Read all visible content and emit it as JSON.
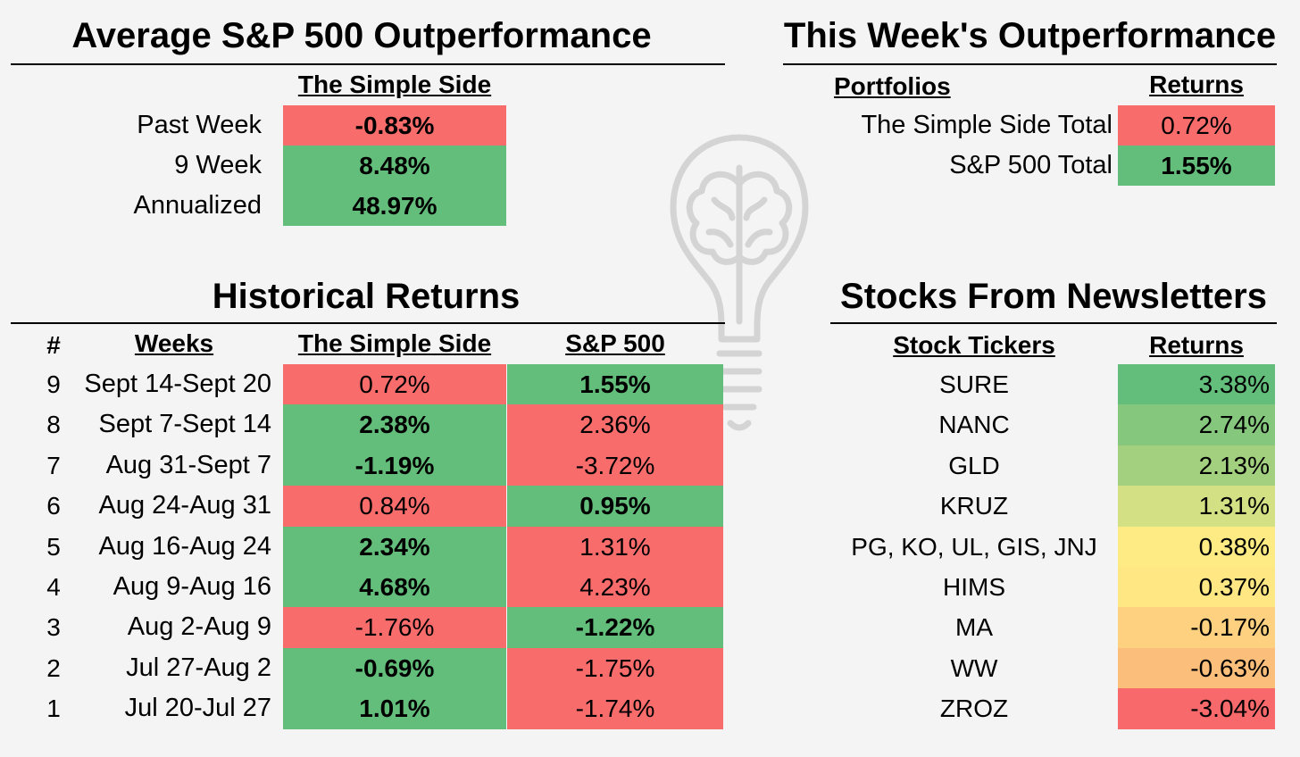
{
  "colors": {
    "red": "#f86c6b",
    "green": "#63be7b",
    "returns_scale": [
      "#63be7b",
      "#85c87d",
      "#a2d07f",
      "#d3e083",
      "#ffeb84",
      "#ffe884",
      "#fdd17f",
      "#fcbf7b",
      "#f8696b"
    ]
  },
  "avg": {
    "title": "Average S&P 500 Outperformance",
    "col_header": "The Simple Side",
    "rows": [
      {
        "label": "Past Week",
        "value": "-0.83%",
        "color": "red",
        "bold": true
      },
      {
        "label": "9 Week",
        "value": "8.48%",
        "color": "green",
        "bold": true
      },
      {
        "label": "Annualized",
        "value": "48.97%",
        "color": "green",
        "bold": true
      }
    ]
  },
  "week": {
    "title": "This Week's Outperformance",
    "headers": {
      "portfolios": "Portfolios",
      "returns": "Returns"
    },
    "rows": [
      {
        "label": "The Simple Side Total",
        "value": "0.72%",
        "color": "red",
        "bold": false
      },
      {
        "label": "S&P 500 Total",
        "value": "1.55%",
        "color": "green",
        "bold": true
      }
    ]
  },
  "hist": {
    "title": "Historical Returns",
    "headers": {
      "num": "#",
      "weeks": "Weeks",
      "simple": "The Simple Side",
      "sp": "S&P 500"
    },
    "rows": [
      {
        "num": "9",
        "week": "Sept 14-Sept 20",
        "simple": "0.72%",
        "simple_color": "red",
        "simple_bold": false,
        "sp": "1.55%",
        "sp_color": "green",
        "sp_bold": true
      },
      {
        "num": "8",
        "week": "Sept 7-Sept 14",
        "simple": "2.38%",
        "simple_color": "green",
        "simple_bold": true,
        "sp": "2.36%",
        "sp_color": "red",
        "sp_bold": false
      },
      {
        "num": "7",
        "week": "Aug 31-Sept 7",
        "simple": "-1.19%",
        "simple_color": "green",
        "simple_bold": true,
        "sp": "-3.72%",
        "sp_color": "red",
        "sp_bold": false
      },
      {
        "num": "6",
        "week": "Aug 24-Aug 31",
        "simple": "0.84%",
        "simple_color": "red",
        "simple_bold": false,
        "sp": "0.95%",
        "sp_color": "green",
        "sp_bold": true
      },
      {
        "num": "5",
        "week": "Aug 16-Aug 24",
        "simple": "2.34%",
        "simple_color": "green",
        "simple_bold": true,
        "sp": "1.31%",
        "sp_color": "red",
        "sp_bold": false
      },
      {
        "num": "4",
        "week": "Aug 9-Aug 16",
        "simple": "4.68%",
        "simple_color": "green",
        "simple_bold": true,
        "sp": "4.23%",
        "sp_color": "red",
        "sp_bold": false
      },
      {
        "num": "3",
        "week": "Aug 2-Aug 9",
        "simple": "-1.76%",
        "simple_color": "red",
        "simple_bold": false,
        "sp": "-1.22%",
        "sp_color": "green",
        "sp_bold": true
      },
      {
        "num": "2",
        "week": "Jul 27-Aug 2",
        "simple": "-0.69%",
        "simple_color": "green",
        "simple_bold": true,
        "sp": "-1.75%",
        "sp_color": "red",
        "sp_bold": false
      },
      {
        "num": "1",
        "week": "Jul 20-Jul 27",
        "simple": "1.01%",
        "simple_color": "green",
        "simple_bold": true,
        "sp": "-1.74%",
        "sp_color": "red",
        "sp_bold": false
      }
    ]
  },
  "stocks": {
    "title": "Stocks From Newsletters",
    "headers": {
      "tickers": "Stock Tickers",
      "returns": "Returns"
    },
    "rows": [
      {
        "ticker": "SURE",
        "value": "3.38%"
      },
      {
        "ticker": "NANC",
        "value": "2.74%"
      },
      {
        "ticker": "GLD",
        "value": "2.13%"
      },
      {
        "ticker": "KRUZ",
        "value": "1.31%"
      },
      {
        "ticker": "PG, KO, UL, GIS, JNJ",
        "value": "0.38%"
      },
      {
        "ticker": "HIMS",
        "value": "0.37%"
      },
      {
        "ticker": "MA",
        "value": "-0.17%"
      },
      {
        "ticker": "WW",
        "value": "-0.63%"
      },
      {
        "ticker": "ZROZ",
        "value": "-3.04%"
      }
    ]
  },
  "watermark_icon": "lightbulb-brain-icon"
}
